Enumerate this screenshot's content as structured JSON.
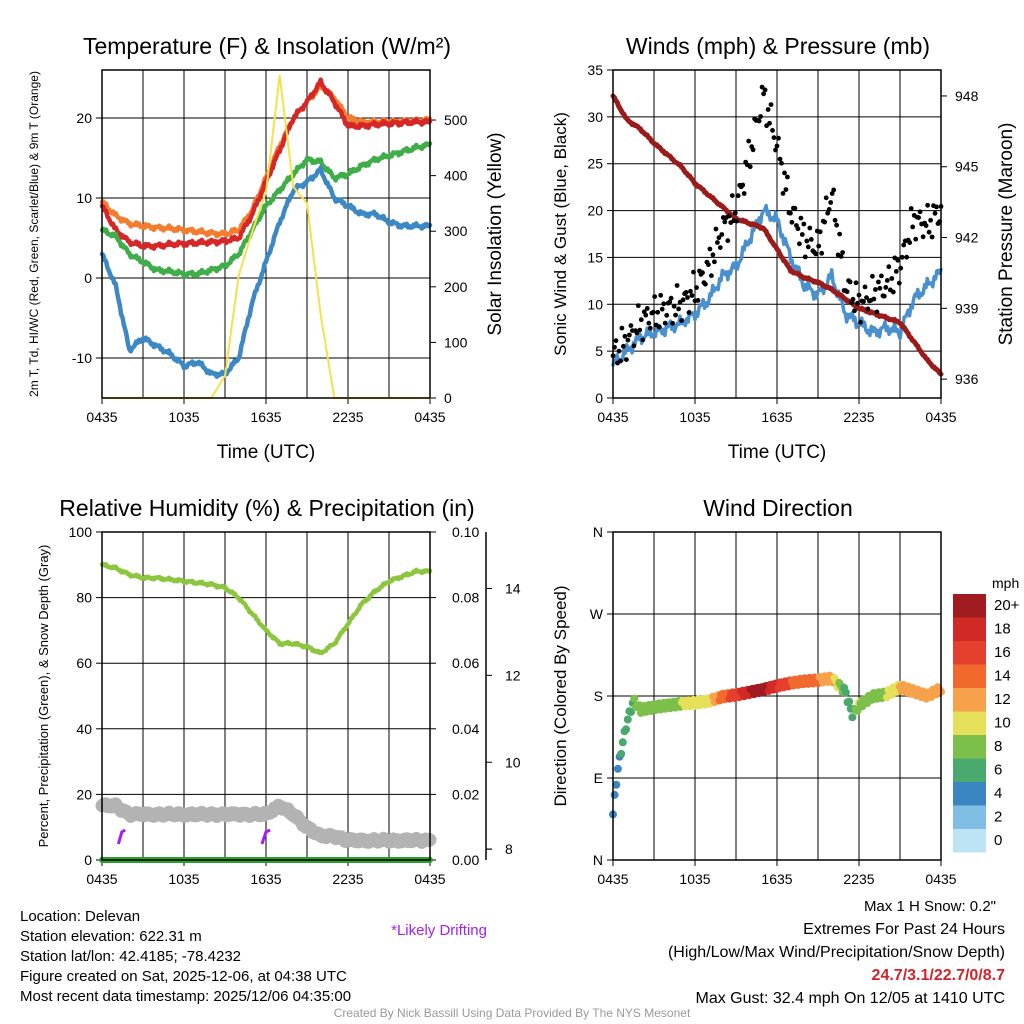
{
  "chart_data": [
    {
      "type": "line",
      "title": "Temperature (F) & Insolation (W/m²)",
      "xlabel": "Time (UTC)",
      "ylabel_left": "2m T, Td, HI/WC (Red, Green, Scarlet/Blue) & 9m T (Orange)",
      "ylabel_right": "Solar Insolation (Yellow)",
      "x_ticks": [
        "0435",
        "1035",
        "1635",
        "2235",
        "0435"
      ],
      "ylim": [
        -15,
        26
      ],
      "y_ticks": [
        -10,
        0,
        10,
        20
      ],
      "ylim_right": [
        0,
        590
      ],
      "y_ticks_right": [
        0,
        100,
        200,
        300,
        400,
        500
      ],
      "x_hours": [
        0,
        1,
        2,
        3,
        4,
        5,
        6,
        7,
        8,
        9,
        10,
        11,
        12,
        13,
        14,
        15,
        16,
        17,
        18,
        19,
        20,
        21,
        22,
        23,
        24
      ],
      "series": [
        {
          "name": "9m T",
          "color": "#f47c2f",
          "values": [
            9.5,
            7.8,
            6.8,
            6.5,
            6.3,
            6.2,
            6.0,
            5.8,
            5.6,
            5.5,
            6.0,
            8.5,
            12.5,
            16.5,
            20.0,
            22.0,
            24.0,
            22.5,
            20.0,
            19.5,
            19.5,
            19.5,
            19.6,
            19.6,
            19.8
          ]
        },
        {
          "name": "2m T",
          "color": "#d62728",
          "values": [
            9.0,
            6.0,
            4.5,
            4.0,
            4.0,
            4.2,
            4.3,
            4.4,
            4.5,
            4.6,
            5.0,
            8.0,
            12.0,
            16.0,
            20.0,
            22.0,
            24.5,
            22.0,
            19.0,
            19.0,
            19.2,
            19.3,
            19.4,
            19.5,
            19.5
          ]
        },
        {
          "name": "Td",
          "color": "#3fae49",
          "values": [
            6.0,
            5.2,
            3.0,
            2.0,
            1.0,
            0.8,
            0.5,
            0.5,
            1.0,
            1.5,
            3.0,
            6.0,
            9.0,
            11.0,
            13.0,
            14.8,
            14.5,
            12.5,
            13.0,
            14.0,
            14.8,
            15.3,
            15.8,
            16.3,
            16.7
          ]
        },
        {
          "name": "HI/WC",
          "color": "#3b88c4",
          "values": [
            3.0,
            -1.0,
            -9.0,
            -7.5,
            -8.5,
            -9.5,
            -11.0,
            -10.5,
            -12.0,
            -12.0,
            -10.0,
            -3.0,
            2.0,
            7.0,
            11.0,
            12.0,
            13.5,
            10.0,
            9.0,
            8.0,
            8.0,
            7.0,
            6.5,
            6.5,
            6.5
          ]
        },
        {
          "name": "Solar Insolation",
          "color": "#f5e14a",
          "axis": "right",
          "values": [
            0,
            0,
            0,
            0,
            0,
            0,
            0,
            0,
            0,
            40,
            220,
            300,
            370,
            580,
            380,
            350,
            150,
            0,
            0,
            0,
            0,
            0,
            0,
            0,
            0
          ]
        }
      ]
    },
    {
      "type": "line",
      "title": "Winds (mph) & Pressure (mb)",
      "xlabel": "Time (UTC)",
      "ylabel_left": "Sonic Wind & Gust (Blue, Black)",
      "ylabel_right": "Station Pressure (Maroon)",
      "x_ticks": [
        "0435",
        "1035",
        "1635",
        "2235",
        "0435"
      ],
      "ylim": [
        0,
        35
      ],
      "y_ticks": [
        0,
        5,
        10,
        15,
        20,
        25,
        30,
        35
      ],
      "ylim_right": [
        935.2,
        949.1
      ],
      "y_ticks_right": [
        936,
        939,
        942,
        945,
        948
      ],
      "x_hours": [
        0,
        1,
        2,
        3,
        4,
        5,
        6,
        7,
        8,
        9,
        10,
        11,
        12,
        13,
        14,
        15,
        16,
        17,
        18,
        19,
        20,
        21,
        22,
        23,
        24
      ],
      "series": [
        {
          "name": "Sonic Wind",
          "color": "#4a90cf",
          "values": [
            3.5,
            5.0,
            6.5,
            7.0,
            7.5,
            8.0,
            9.0,
            10.5,
            13.0,
            14.0,
            17.0,
            20.0,
            19.0,
            15.0,
            12.0,
            11.0,
            13.0,
            9.0,
            8.0,
            7.0,
            7.5,
            7.0,
            10.5,
            12.0,
            13.5
          ]
        },
        {
          "name": "Gust",
          "color": "#000000",
          "marker": "dot",
          "values": [
            4.5,
            6.0,
            8.0,
            9.0,
            9.5,
            10.0,
            11.5,
            14.0,
            18.0,
            20.0,
            26.0,
            32.4,
            27.0,
            20.0,
            17.0,
            16.0,
            22.0,
            12.0,
            10.0,
            11.0,
            12.0,
            14.0,
            19.0,
            18.5,
            20.0
          ]
        },
        {
          "name": "Station Pressure",
          "color": "#9b1b1b",
          "axis": "right",
          "values": [
            948.0,
            947.0,
            946.6,
            946.0,
            945.5,
            945.0,
            944.3,
            943.8,
            943.3,
            942.8,
            942.6,
            942.4,
            941.5,
            940.6,
            940.3,
            940.1,
            939.8,
            939.4,
            939.0,
            938.8,
            938.6,
            938.4,
            937.6,
            936.8,
            936.2
          ]
        }
      ]
    },
    {
      "type": "line",
      "title": "Relative Humidity (%) & Precipitation (in)",
      "ylabel_left": "Percent, Precipitation (Green), & Snow Depth (Gray)",
      "x_ticks": [
        "0435",
        "1035",
        "1635",
        "2235",
        "0435"
      ],
      "ylim": [
        0,
        100
      ],
      "y_ticks": [
        0,
        20,
        40,
        60,
        80,
        100
      ],
      "ylim_right": [
        0,
        0.1
      ],
      "y_ticks_right": [
        "0.00",
        "0.02",
        "0.04",
        "0.06",
        "0.08",
        "0.10"
      ],
      "y_ticks_snow": [
        8,
        10,
        12,
        14
      ],
      "x_hours": [
        0,
        1,
        2,
        3,
        4,
        5,
        6,
        7,
        8,
        9,
        10,
        11,
        12,
        13,
        14,
        15,
        16,
        17,
        18,
        19,
        20,
        21,
        22,
        23,
        24
      ],
      "series": [
        {
          "name": "Relative Humidity",
          "color": "#8cc63f",
          "values": [
            90,
            89,
            87,
            86,
            86,
            85.5,
            85,
            84.5,
            84,
            83,
            80,
            75,
            70,
            66,
            66,
            65,
            63,
            66,
            72,
            78,
            82,
            85,
            86.5,
            88,
            88
          ]
        },
        {
          "name": "Precipitation",
          "color": "#2ca02c",
          "values": [
            0,
            0,
            0,
            0,
            0,
            0,
            0,
            0,
            0,
            0,
            0,
            0,
            0,
            0,
            0,
            0,
            0,
            0,
            0,
            0,
            0,
            0,
            0,
            0,
            0
          ]
        },
        {
          "name": "Snow Depth",
          "color": "#b3b3b3",
          "values": [
            9.0,
            9.0,
            8.8,
            8.8,
            8.8,
            8.8,
            8.8,
            8.8,
            8.8,
            8.8,
            8.8,
            8.8,
            8.8,
            9.0,
            8.8,
            8.5,
            8.3,
            8.3,
            8.2,
            8.2,
            8.2,
            8.2,
            8.2,
            8.2,
            8.2
          ]
        }
      ],
      "annotations": {
        "max_snow": "Max 1 H Snow: 0.2\"",
        "drifting": "*Likely Drifting"
      }
    },
    {
      "type": "scatter",
      "title": "Wind Direction",
      "ylabel_left": "Direction (Colored By Speed)",
      "x_ticks": [
        "0435",
        "1035",
        "1635",
        "2235",
        "0435"
      ],
      "y_ticks": [
        "N",
        "E",
        "S",
        "W",
        "N"
      ],
      "ylim_deg": [
        0,
        360
      ],
      "x_hours": [
        0,
        0.3,
        0.6,
        1.0,
        1.5,
        2.0,
        3.0,
        4.0,
        5.0,
        6.0,
        7.0,
        8.0,
        9.0,
        10.0,
        11.0,
        12.0,
        13.0,
        14.0,
        15.0,
        16.0,
        17.0,
        17.5,
        18.0,
        19.0,
        20.0,
        21.0,
        22.0,
        23.0,
        24.0
      ],
      "direction_deg": [
        50,
        95,
        120,
        150,
        175,
        165,
        168,
        170,
        172,
        173,
        175,
        180,
        182,
        185,
        188,
        192,
        195,
        197,
        198,
        200,
        185,
        160,
        170,
        180,
        182,
        190,
        185,
        180,
        188
      ],
      "speed_mph": [
        3,
        4,
        5,
        6,
        7,
        7,
        8,
        8,
        9,
        10,
        10,
        14,
        16,
        19,
        20,
        17,
        15,
        14,
        13,
        12,
        6,
        5,
        9,
        8,
        9,
        11,
        12,
        13,
        12
      ],
      "colorbar": {
        "label": "mph",
        "levels": [
          "20+",
          "18",
          "16",
          "14",
          "12",
          "10",
          "8",
          "6",
          "4",
          "2",
          "0"
        ],
        "colors": [
          "#a01c20",
          "#d12a26",
          "#e4402d",
          "#f2692e",
          "#f7a24a",
          "#e6df59",
          "#7cbf4b",
          "#4aa96c",
          "#3c85c3",
          "#7fbde4",
          "#bde4f5"
        ]
      }
    }
  ],
  "footer": {
    "location": "Location: Delevan",
    "elevation": "Station elevation: 622.31 m",
    "latlon": "Station lat/lon: 42.4185; -78.4232",
    "created": "Figure created on Sat, 2025-12-06, at 04:38 UTC",
    "recent": "Most recent data timestamp: 2025/12/06 04:35:00",
    "extremes_title": "Extremes For Past 24 Hours",
    "extremes_sub": "(High/Low/Max Wind/Precipitation/Snow Depth)",
    "extremes_values": "24.7/3.1/22.7/0/8.7",
    "max_gust": "Max Gust: 32.4 mph On 12/05 at 1410 UTC",
    "credit": "Created By Nick Bassill Using Data Provided By The NYS Mesonet"
  }
}
